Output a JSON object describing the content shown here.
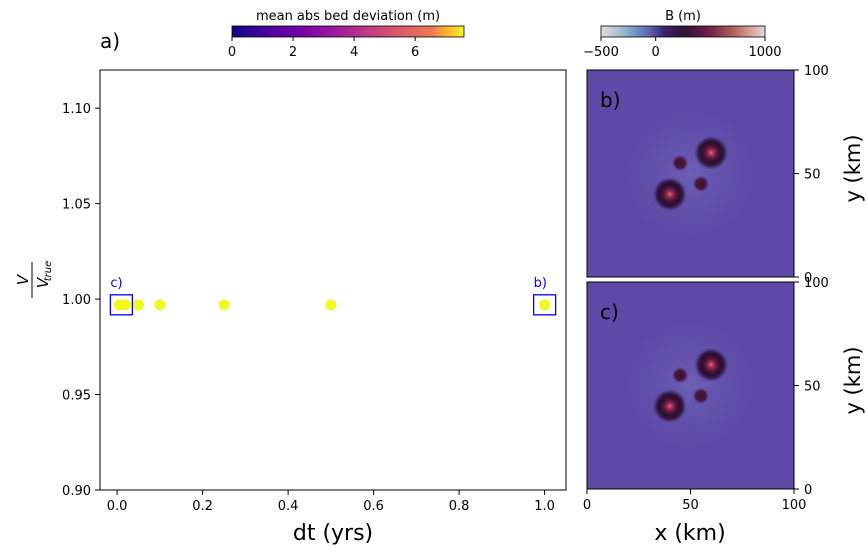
{
  "chart_data": [
    {
      "type": "scatter",
      "panel_label": "a)",
      "xlabel": "dt (yrs)",
      "ylabel_main": "V",
      "ylabel_sub": "true",
      "xlim": [
        -0.04,
        1.05
      ],
      "ylim": [
        0.9,
        1.12
      ],
      "x_ticks": [
        0.0,
        0.2,
        0.4,
        0.6,
        0.8,
        1.0
      ],
      "x_tick_labels": [
        "0.0",
        "0.2",
        "0.4",
        "0.6",
        "0.8",
        "1.0"
      ],
      "y_ticks": [
        0.9,
        0.95,
        1.0,
        1.05,
        1.1
      ],
      "y_tick_labels": [
        "0.90",
        "0.95",
        "1.00",
        "1.05",
        "1.10"
      ],
      "grid": false,
      "points": [
        {
          "x": 0.005,
          "y": 0.997,
          "color_value": 7.6
        },
        {
          "x": 0.01,
          "y": 0.997,
          "color_value": 7.6
        },
        {
          "x": 0.02,
          "y": 0.997,
          "color_value": 7.6
        },
        {
          "x": 0.05,
          "y": 0.997,
          "color_value": 7.6
        },
        {
          "x": 0.1,
          "y": 0.997,
          "color_value": 7.6
        },
        {
          "x": 0.25,
          "y": 0.997,
          "color_value": 7.6
        },
        {
          "x": 0.5,
          "y": 0.997,
          "color_value": 7.6
        },
        {
          "x": 1.0,
          "y": 0.997,
          "color_value": 7.6
        }
      ],
      "point_color": "#f0f921",
      "annotations": [
        {
          "label": "c)",
          "x": 0.01,
          "y": 0.997,
          "color": "#0000ff"
        },
        {
          "label": "b)",
          "x": 1.0,
          "y": 0.997,
          "color": "#0000ff"
        }
      ],
      "colorbar": {
        "label": "mean abs bed deviation (m)",
        "colormap": "plasma",
        "range": [
          0,
          7.6
        ],
        "ticks": [
          0,
          2,
          4,
          6
        ],
        "tick_labels": [
          "0",
          "2",
          "4",
          "6"
        ],
        "placement": "top"
      }
    },
    {
      "type": "heatmap",
      "panels": [
        {
          "panel_label": "b)",
          "ylabel": "y (km)",
          "ylim": [
            0,
            100
          ],
          "y_ticks": [
            0,
            50,
            100
          ],
          "y_tick_labels": [
            "0",
            "50",
            "100"
          ]
        },
        {
          "panel_label": "c)",
          "ylabel": "y (km)",
          "ylim": [
            0,
            100
          ],
          "y_ticks": [
            0,
            50,
            100
          ],
          "y_tick_labels": [
            "0",
            "50",
            "100"
          ]
        }
      ],
      "xlabel": "x (km)",
      "xlim": [
        0,
        100
      ],
      "x_ticks": [
        0,
        50,
        100
      ],
      "x_tick_labels": [
        "0",
        "50",
        "100"
      ],
      "background_color": "#5e4aa6",
      "features": [
        {
          "x": 60,
          "y": 60,
          "kind": "large-mound"
        },
        {
          "x": 40,
          "y": 40,
          "kind": "large-mound"
        },
        {
          "x": 45,
          "y": 55,
          "kind": "small-mound"
        },
        {
          "x": 55,
          "y": 45,
          "kind": "small-mound"
        }
      ],
      "colorbar": {
        "label": "B (m)",
        "colormap": "twilight",
        "range": [
          -500,
          1000
        ],
        "ticks": [
          -500,
          0,
          1000
        ],
        "tick_labels": [
          "−500",
          "0",
          "1000"
        ],
        "placement": "top"
      }
    }
  ]
}
